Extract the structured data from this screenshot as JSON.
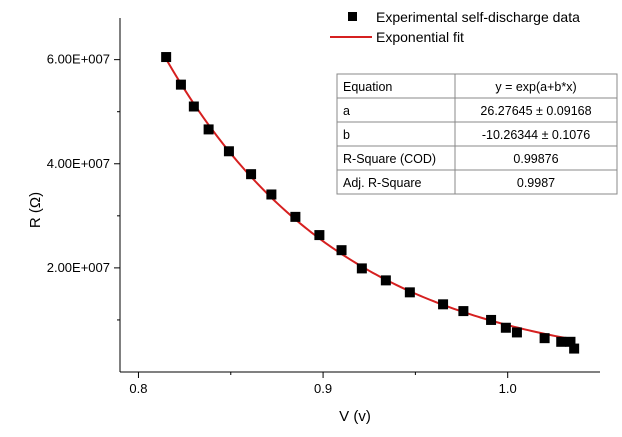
{
  "chart_data": {
    "type": "scatter",
    "title": "",
    "xlabel": "V (v)",
    "ylabel": "R (Ω)",
    "xlim": [
      0.79,
      1.05
    ],
    "ylim": [
      0,
      68000000
    ],
    "x_ticks": [
      0.8,
      0.9,
      1.0
    ],
    "x_tick_labels": [
      "0.8",
      "0.9",
      "1.0"
    ],
    "y_ticks": [
      20000000,
      40000000,
      60000000
    ],
    "y_tick_labels": [
      "2.00E+007",
      "4.00E+007",
      "6.00E+007"
    ],
    "grid": false,
    "legend_position": "top-right",
    "series": [
      {
        "name": "Experimental self-discharge data",
        "kind": "scatter",
        "color": "#000000",
        "x": [
          0.815,
          0.823,
          0.83,
          0.838,
          0.849,
          0.861,
          0.872,
          0.885,
          0.898,
          0.91,
          0.921,
          0.934,
          0.947,
          0.965,
          0.976,
          0.991,
          0.999,
          1.005,
          1.02,
          1.029,
          1.034,
          1.036
        ],
        "y": [
          60500000,
          55200000,
          51000000,
          46600000,
          42400000,
          38000000,
          34100000,
          29800000,
          26300000,
          23400000,
          19900000,
          17600000,
          15300000,
          13000000,
          11700000,
          10000000,
          8500000,
          7600000,
          6500000,
          5800000,
          5800000,
          4500000
        ]
      },
      {
        "name": "Exponential fit",
        "kind": "line",
        "color": "#d62020",
        "x_range": [
          0.815,
          1.035
        ],
        "a": 26.27645,
        "b": -10.26344
      }
    ],
    "fit_table": {
      "header": [
        "Equation",
        "y = exp(a+b*x)"
      ],
      "rows": [
        [
          "a",
          "26.27645 ± 0.09168"
        ],
        [
          "b",
          "-10.26344 ± 0.1076"
        ],
        [
          "R-Square (COD)",
          "0.99876"
        ],
        [
          "Adj. R-Square",
          "0.9987"
        ]
      ]
    }
  }
}
